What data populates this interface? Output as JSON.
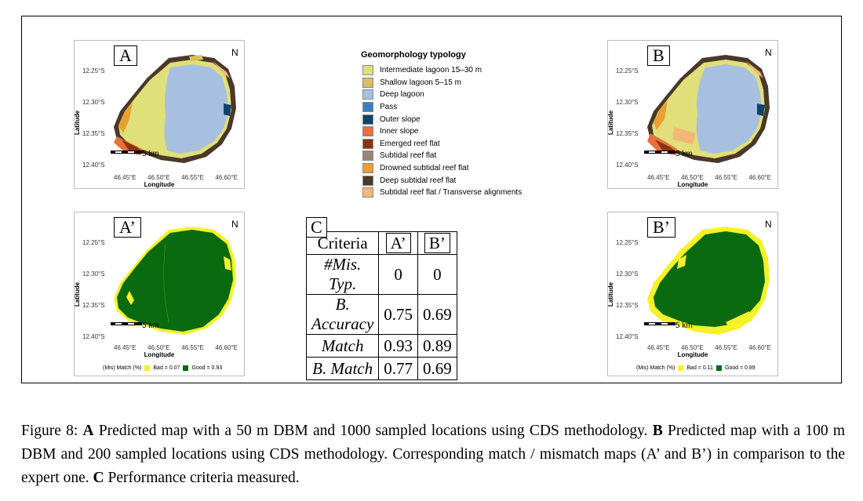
{
  "legend": {
    "title": "Geomorphology typology",
    "items": [
      {
        "label": "Intermediate lagoon 15–30 m",
        "color": "#e0e07a"
      },
      {
        "label": "Shallow lagoon 5–15 m",
        "color": "#d6bf5e"
      },
      {
        "label": "Deep lagoon",
        "color": "#a8c0e0"
      },
      {
        "label": "Pass",
        "color": "#3a7fc4"
      },
      {
        "label": "Outer slope",
        "color": "#0f4370"
      },
      {
        "label": "Inner slope",
        "color": "#e8703a"
      },
      {
        "label": "Emerged reef flat",
        "color": "#8a3410"
      },
      {
        "label": "Subtidal reef flat",
        "color": "#9a8478"
      },
      {
        "label": "Drowned subtidal reef flat",
        "color": "#e8a030"
      },
      {
        "label": "Deep subtidal reef flat",
        "color": "#4a3828"
      },
      {
        "label": "Subtidal reef flat / Transverse alignments",
        "color": "#f2b87a"
      }
    ]
  },
  "maps": {
    "lat_ticks": [
      "12.25°S",
      "12.30°S",
      "12.35°S",
      "12.40°S"
    ],
    "lon_ticks": [
      "46.45°E",
      "46.50°E",
      "46.55°E",
      "46.60°E"
    ],
    "xlabel": "Longitude",
    "ylabel": "Latitude",
    "scale": "5 km",
    "north": "N",
    "panel_a": {
      "tag": "A"
    },
    "panel_b": {
      "tag": "B"
    },
    "panel_a_prime": {
      "tag": "A’",
      "legend_prefix": "(Mis) Match (%)",
      "bad": "Bad = 0.07",
      "good": "Good = 0.93"
    },
    "panel_b_prime": {
      "tag": "B’",
      "legend_prefix": "(Mis) Match (%)",
      "bad": "Bad = 0.11",
      "good": "Good = 0.89"
    },
    "match_colors": {
      "bad": "#f5f22a",
      "good": "#0a6a10"
    }
  },
  "table": {
    "tag": "C",
    "headers": [
      "Criteria",
      "A’",
      "B’"
    ],
    "rows": [
      [
        "#Mis. Typ.",
        "0",
        "0"
      ],
      [
        "B. Accuracy",
        "0.75",
        "0.69"
      ],
      [
        "Match",
        "0.93",
        "0.89"
      ],
      [
        "B. Match",
        "0.77",
        "0.69"
      ]
    ]
  },
  "caption": {
    "label": "Figure 8:",
    "a_bold": "A",
    "a_text": "Predicted map with a 50 m DBM and 1000 sampled locations using CDS methodology.",
    "b_bold": "B",
    "b_text": "Predicted map with a 100 m DBM and 200 sampled locations using CDS methodology. Corresponding match / mismatch maps (A’ and B’) in comparison to the expert one.",
    "c_bold": "C",
    "c_text": "Performance criteria measured."
  }
}
